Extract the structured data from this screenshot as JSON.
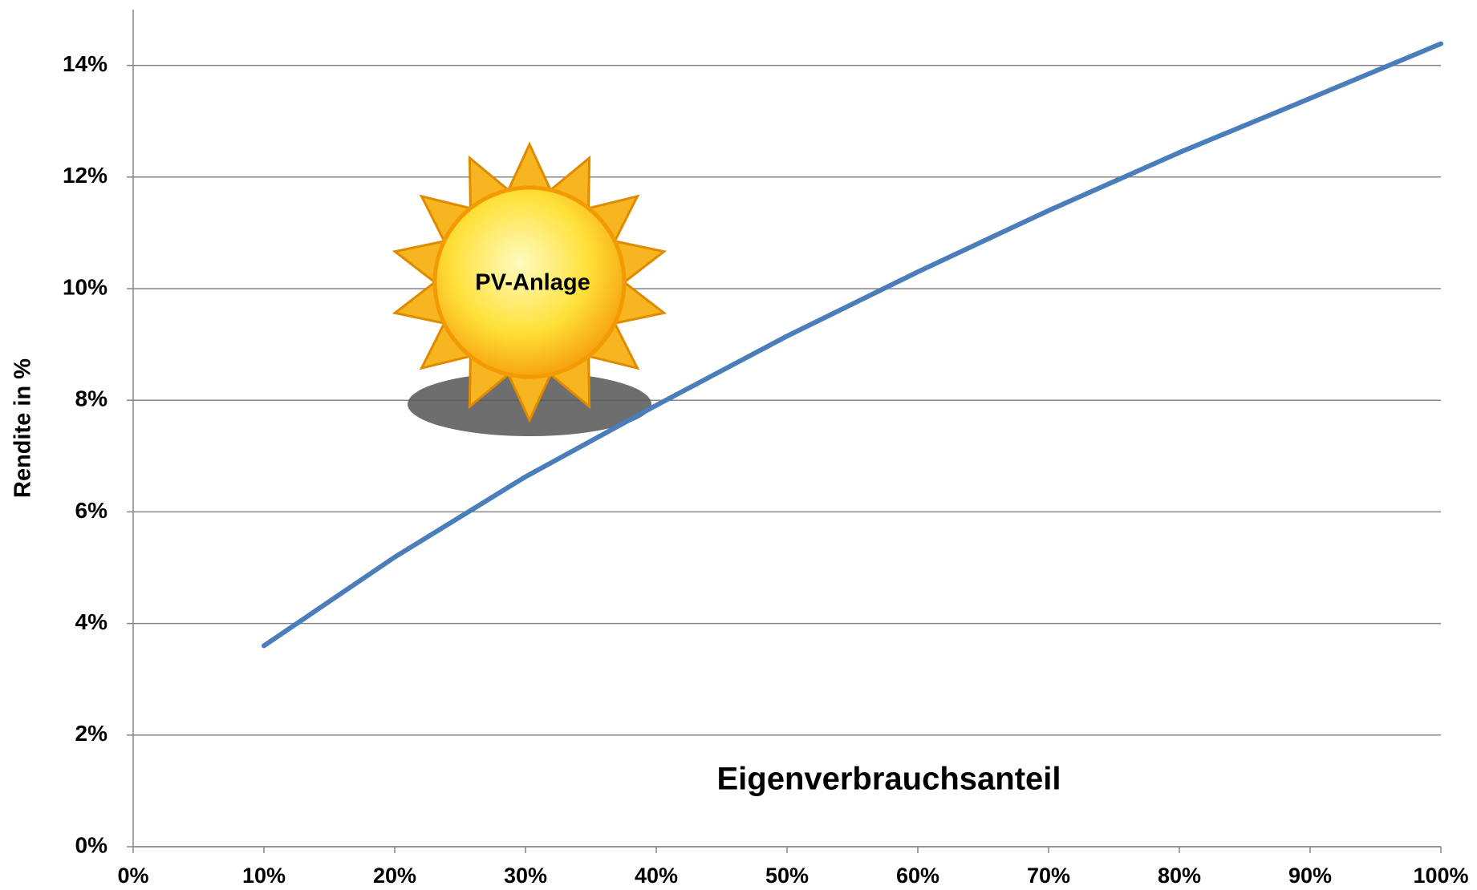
{
  "chart_data": {
    "type": "line",
    "xlabel": "Eigenverbrauchsanteil",
    "ylabel": "Rendite in %",
    "annotation": "PV-Anlage",
    "x": [
      10,
      20,
      30,
      40,
      50,
      60,
      70,
      80,
      90,
      100
    ],
    "values": [
      3.6,
      5.19,
      6.63,
      7.91,
      9.15,
      10.3,
      11.4,
      12.44,
      13.41,
      14.39
    ],
    "color": "#4a7ebb",
    "grid": true,
    "xlim": [
      0,
      100
    ],
    "xticks": [
      {
        "value": 0,
        "label": "0%"
      },
      {
        "value": 10,
        "label": "10%"
      },
      {
        "value": 20,
        "label": "20%"
      },
      {
        "value": 30,
        "label": "30%"
      },
      {
        "value": 40,
        "label": "40%"
      },
      {
        "value": 50,
        "label": "50%"
      },
      {
        "value": 60,
        "label": "60%"
      },
      {
        "value": 70,
        "label": "70%"
      },
      {
        "value": 80,
        "label": "80%"
      },
      {
        "value": 90,
        "label": "90%"
      },
      {
        "value": 100,
        "label": "100%"
      }
    ],
    "ylim": [
      0,
      15
    ],
    "yticks": [
      {
        "value": 0,
        "label": "0%"
      },
      {
        "value": 2,
        "label": "2%"
      },
      {
        "value": 4,
        "label": "4%"
      },
      {
        "value": 6,
        "label": "6%"
      },
      {
        "value": 8,
        "label": "8%"
      },
      {
        "value": 10,
        "label": "10%"
      },
      {
        "value": 12,
        "label": "12%"
      },
      {
        "value": 14,
        "label": "14%"
      }
    ]
  }
}
